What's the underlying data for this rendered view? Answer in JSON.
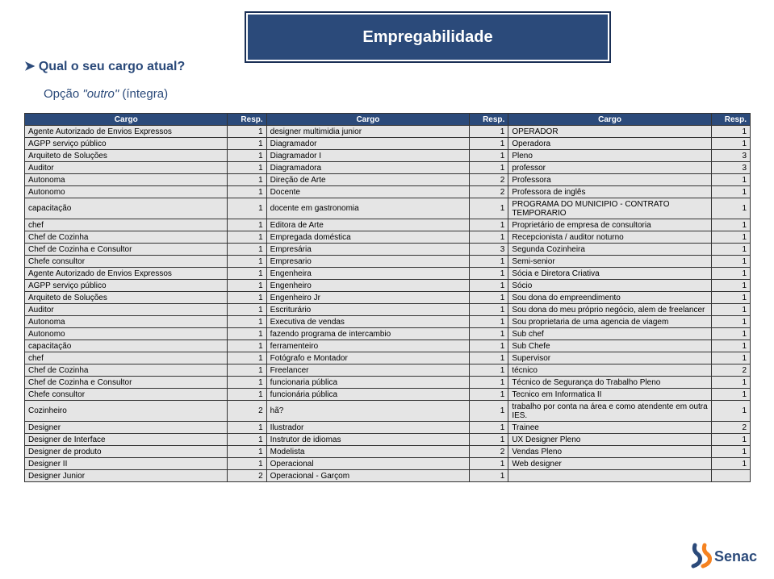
{
  "banner": {
    "title": "Empregabilidade"
  },
  "question": "Qual o seu cargo atual?",
  "option_prefix": "Opção ",
  "option_quote": "\"outro\"",
  "option_suffix": " (íntegra)",
  "headers": {
    "cargo": "Cargo",
    "resp": "Resp."
  },
  "rows": [
    [
      "Agente Autorizado de Envios Expressos",
      "1",
      "designer multimidia junior",
      "1",
      "OPERADOR",
      "1"
    ],
    [
      "AGPP serviço público",
      "1",
      "Diagramador",
      "1",
      "Operadora",
      "1"
    ],
    [
      "Arquiteto de Soluções",
      "1",
      "Diagramador I",
      "1",
      "Pleno",
      "3"
    ],
    [
      "Auditor",
      "1",
      "Diagramadora",
      "1",
      "professor",
      "3"
    ],
    [
      "Autonoma",
      "1",
      "Direção de Arte",
      "2",
      "Professora",
      "1"
    ],
    [
      "Autonomo",
      "1",
      "Docente",
      "2",
      "Professora de inglês",
      "1"
    ],
    [
      "capacitação",
      "1",
      "docente em gastronomia",
      "1",
      "PROGRAMA DO MUNICIPIO - CONTRATO TEMPORARIO",
      "1"
    ],
    [
      "chef",
      "1",
      "Editora de Arte",
      "1",
      "Proprietário de empresa de consultoria",
      "1"
    ],
    [
      "Chef de Cozinha",
      "1",
      "Empregada doméstica",
      "1",
      "Recepcionista / auditor noturno",
      "1"
    ],
    [
      "Chef de Cozinha e Consultor",
      "1",
      "Empresária",
      "3",
      "Segunda Cozinheira",
      "1"
    ],
    [
      "Chefe consultor",
      "1",
      "Empresario",
      "1",
      "Semi-senior",
      "1"
    ],
    [
      "Agente Autorizado de Envios Expressos",
      "1",
      "Engenheira",
      "1",
      "Sócia e Diretora Criativa",
      "1"
    ],
    [
      "AGPP serviço público",
      "1",
      "Engenheiro",
      "1",
      "Sócio",
      "1"
    ],
    [
      "Arquiteto de Soluções",
      "1",
      "Engenheiro Jr",
      "1",
      "Sou dona do empreendimento",
      "1"
    ],
    [
      "Auditor",
      "1",
      "Escriturário",
      "1",
      "Sou dona do meu próprio negócio, alem de freelancer",
      "1"
    ],
    [
      "Autonoma",
      "1",
      "Executiva de vendas",
      "1",
      "Sou proprietaria de uma agencia de viagem",
      "1"
    ],
    [
      "Autonomo",
      "1",
      "fazendo programa de intercambio",
      "1",
      "Sub chef",
      "1"
    ],
    [
      "capacitação",
      "1",
      "ferramenteiro",
      "1",
      "Sub Chefe",
      "1"
    ],
    [
      "chef",
      "1",
      "Fotógrafo e Montador",
      "1",
      "Supervisor",
      "1"
    ],
    [
      "Chef de Cozinha",
      "1",
      "Freelancer",
      "1",
      "técnico",
      "2"
    ],
    [
      "Chef de Cozinha e Consultor",
      "1",
      "funcionaria pública",
      "1",
      "Técnico de Segurança do Trabalho Pleno",
      "1"
    ],
    [
      "Chefe consultor",
      "1",
      "funcionária pública",
      "1",
      "Tecnico em Informatica II",
      "1"
    ],
    [
      "Cozinheiro",
      "2",
      "hã?",
      "1",
      "trabalho por conta na área e como atendente em outra IES.",
      "1"
    ],
    [
      "Designer",
      "1",
      "Ilustrador",
      "1",
      "Trainee",
      "2"
    ],
    [
      "Designer de Interface",
      "1",
      "Instrutor de idiomas",
      "1",
      "UX Designer Pleno",
      "1"
    ],
    [
      "Designer de produto",
      "1",
      "Modelista",
      "2",
      "Vendas Pleno",
      "1"
    ],
    [
      "Designer II",
      "1",
      "Operacional",
      "1",
      "Web designer",
      "1"
    ],
    [
      "Designer Junior",
      "2",
      "Operacional - Garçom",
      "1",
      "",
      ""
    ]
  ],
  "logo": {
    "text": "Senac",
    "bg": "#ffffff",
    "blue": "#2b4a7a",
    "orange": "#f58220"
  }
}
